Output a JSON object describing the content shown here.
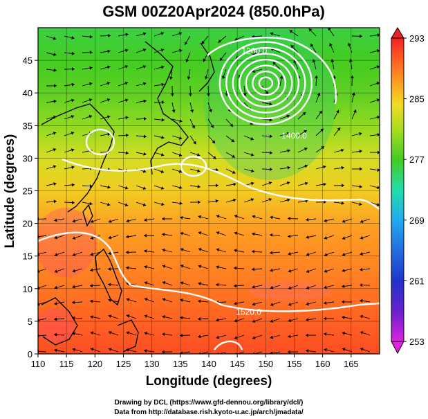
{
  "chart_data": {
    "type": "heatmap",
    "title": "GSM 00Z20Apr2024 (850.0hPa)",
    "xlabel": "Longitude (degrees)",
    "ylabel": "Latitude  (degrees)",
    "xlim": [
      110,
      170
    ],
    "ylim": [
      0,
      50
    ],
    "x_ticks": [
      110,
      115,
      120,
      125,
      130,
      135,
      140,
      145,
      150,
      155,
      160,
      165
    ],
    "y_ticks": [
      0,
      5,
      10,
      15,
      20,
      25,
      30,
      35,
      40,
      45
    ],
    "grid": true,
    "colorbar": {
      "min": 253,
      "max": 293,
      "ticks": [
        253,
        261,
        269,
        277,
        285,
        293
      ],
      "placement": "right"
    },
    "temperature_band_by_latitude": [
      {
        "lat": 0,
        "value": 291
      },
      {
        "lat": 5,
        "value": 290
      },
      {
        "lat": 10,
        "value": 289
      },
      {
        "lat": 15,
        "value": 288
      },
      {
        "lat": 20,
        "value": 287
      },
      {
        "lat": 25,
        "value": 285
      },
      {
        "lat": 30,
        "value": 283
      },
      {
        "lat": 35,
        "value": 280
      },
      {
        "lat": 40,
        "value": 278
      },
      {
        "lat": 45,
        "value": 277
      },
      {
        "lat": 50,
        "value": 276
      }
    ],
    "contour_labels": [
      {
        "text": "1200.0",
        "lon": 148,
        "lat": 46
      },
      {
        "text": "1400.0",
        "lon": 155,
        "lat": 33
      },
      {
        "text": "1520.0",
        "lon": 147,
        "lat": 6
      }
    ],
    "annotations": {
      "overlay": "streamlines",
      "low_center": {
        "lon": 150,
        "lat": 41.5
      }
    }
  },
  "credits": {
    "line1": "Drawing by DCL (https://www.gfd-dennou.org/library/dcl/)",
    "line2": "Data from http://database.rish.kyoto-u.ac.jp/arch/jmadata/"
  },
  "colors": {
    "contour": "#ffffff",
    "coast": "#000000",
    "grid": "#000000"
  }
}
